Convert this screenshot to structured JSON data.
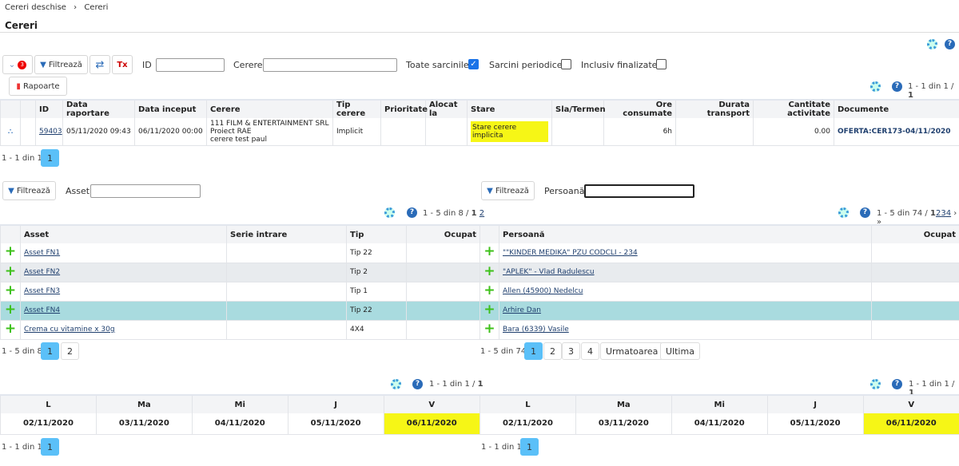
{
  "breadcrumb": [
    "Cereri deschise",
    "Cereri"
  ],
  "page_title": "Cereri",
  "toolbar": {
    "badge": "3",
    "filter": "Filtrează",
    "id_label": "ID",
    "id_value": "",
    "cerere_label": "Cerere",
    "cerere_value": "",
    "toate": "Toate sarcinile",
    "toate_checked": true,
    "periodice": "Sarcini periodice",
    "periodice_checked": false,
    "finalizate": "Inclusiv finalizate",
    "finalizate_checked": false,
    "rapoarte": "Rapoarte"
  },
  "main_table": {
    "info": "1 - 1 din 1 / ",
    "page": "1",
    "columns": [
      "ID",
      "Data raportare",
      "Data inceput",
      "Cerere",
      "Tip cerere",
      "Prioritate",
      "Alocat la",
      "Stare",
      "Sla/Termen",
      "Ore consumate",
      "Durata transport",
      "Cantitate activitate",
      "Documente"
    ],
    "row": {
      "id": "59403",
      "data_raportare": "05/11/2020 09:43",
      "data_inceput": "06/11/2020 00:00",
      "cerere": [
        "111 FILM & ENTERTAINMENT SRL",
        "Proiect RAE",
        "cerere test paul"
      ],
      "tip": "Implicit",
      "prioritate": "",
      "alocat": "",
      "stare": "Stare cerere implicita",
      "sla": "",
      "ore": "6h",
      "durata": "",
      "cantitate": "0.00",
      "documente": "OFERTA:CER173-04/11/2020"
    },
    "footer_info": "1 - 1 din 1",
    "pages": [
      "1"
    ]
  },
  "asset_panel": {
    "filter": "Filtrează",
    "label": "Asset",
    "value": "",
    "info": "1 - 5 din 8 / ",
    "pages_top": [
      "1",
      "2"
    ],
    "columns": [
      "Asset",
      "Serie intrare",
      "Tip",
      "Ocupat"
    ],
    "rows": [
      {
        "asset": "Asset FN1",
        "serie": "",
        "tip": "Tip 22",
        "ocupat": ""
      },
      {
        "asset": "Asset FN2",
        "serie": "",
        "tip": "Tip 2",
        "ocupat": ""
      },
      {
        "asset": "Asset FN3",
        "serie": "",
        "tip": "Tip 1",
        "ocupat": ""
      },
      {
        "asset": "Asset FN4",
        "serie": "",
        "tip": "Tip 22",
        "ocupat": ""
      },
      {
        "asset": "Crema cu vitamine x 30g",
        "serie": "",
        "tip": "4X4",
        "ocupat": ""
      }
    ],
    "footer_info": "1 - 5 din 8",
    "pages": [
      "1",
      "2"
    ]
  },
  "person_panel": {
    "filter": "Filtrează",
    "label": "Persoană",
    "value": "",
    "info": "1 - 5 din 74 / ",
    "pages_top": [
      "1",
      "2",
      "3",
      "4",
      "›",
      "»"
    ],
    "columns": [
      "Persoană",
      "Ocupat"
    ],
    "rows": [
      {
        "name": "\"\"KINDER MEDIKA\" PZU CODCLI - 234",
        "ocupat": ""
      },
      {
        "name": "\"APLEK\" - Vlad Radulescu",
        "ocupat": ""
      },
      {
        "name": "Allen (45900) Nedelcu",
        "ocupat": ""
      },
      {
        "name": "Arhire Dan",
        "ocupat": ""
      },
      {
        "name": "Bara (6339) Vasile",
        "ocupat": ""
      }
    ],
    "footer_info": "1 - 5 din 74",
    "pages": [
      "1",
      "2",
      "3",
      "4"
    ],
    "next": "Urmatoarea",
    "last": "Ultima"
  },
  "calendars": [
    {
      "info": "1 - 1 din 1 / ",
      "page": "1",
      "days": [
        "L",
        "Ma",
        "Mi",
        "J",
        "V"
      ],
      "dates": [
        "02/11/2020",
        "03/11/2020",
        "04/11/2020",
        "05/11/2020",
        "06/11/2020"
      ],
      "highlight": 4,
      "footer_info": "1 - 1 din 1",
      "pages": [
        "1"
      ]
    },
    {
      "info": "1 - 1 din 1 / ",
      "page": "1",
      "days": [
        "L",
        "Ma",
        "Mi",
        "J",
        "V"
      ],
      "dates": [
        "02/11/2020",
        "03/11/2020",
        "04/11/2020",
        "05/11/2020",
        "06/11/2020"
      ],
      "highlight": 4,
      "footer_info": "1 - 1 din 1",
      "pages": [
        "1"
      ]
    }
  ],
  "colors": {
    "accent": "#5bc0f8",
    "highlight": "#f6f616",
    "selected_row": "#a9dbdf",
    "plus": "#3ec11a"
  }
}
